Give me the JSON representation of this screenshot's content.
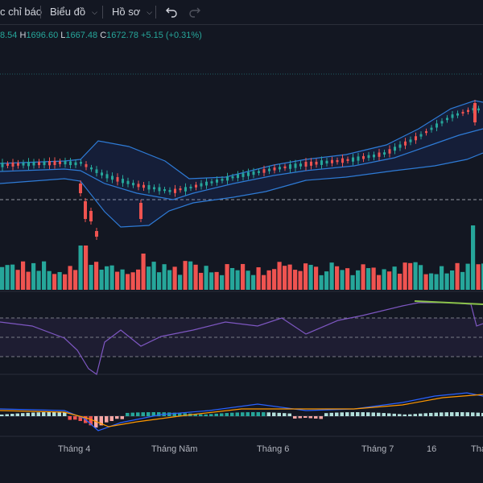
{
  "toolbar": {
    "indicators_label": "c chỉ báo",
    "chart_type_label": "Biểu đồ",
    "profile_label": "Hồ sơ",
    "undo_icon": "undo-icon",
    "redo_icon": "redo-icon"
  },
  "legend": {
    "open_value": "8.54",
    "high_key": "H",
    "high_value": "1696.60",
    "low_key": "L",
    "low_value": "1667.48",
    "close_key": "C",
    "close_value": "1672.78",
    "change": "+5.15 (+0.31%)"
  },
  "time_axis": [
    "Tháng 4",
    "Tháng Năm",
    "Tháng 6",
    "Tháng 7",
    "16",
    "Thá"
  ],
  "colors": {
    "background": "#131722",
    "up": "#26a69a",
    "down": "#ef5350",
    "bollinger": "#2962ff",
    "rsi": "#7e57c2",
    "macd_signal": "#ff9800",
    "divergence": "#8bc34a"
  }
}
